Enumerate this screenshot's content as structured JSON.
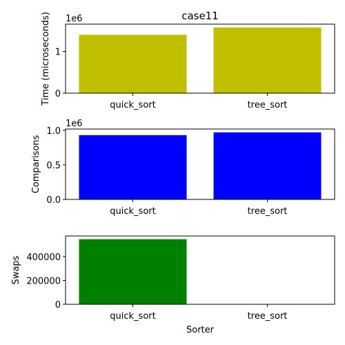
{
  "chart_data": [
    {
      "type": "bar",
      "title": "case11",
      "ylabel": "Time (microseconds)",
      "y_offset_label": "1e6",
      "categories": [
        "quick_sort",
        "tree_sort"
      ],
      "values": [
        1400000,
        1576000
      ],
      "color": "#bfbf00",
      "ylim": [
        0,
        1655000
      ],
      "yticks": [
        0,
        {
          "value": 1000000,
          "label": "1"
        }
      ]
    },
    {
      "type": "bar",
      "ylabel": "Comparisons",
      "y_offset_label": "1e6",
      "categories": [
        "quick_sort",
        "tree_sort"
      ],
      "values": [
        930000,
        970000
      ],
      "color": "#0000ff",
      "ylim": [
        0,
        1018500
      ],
      "yticks": [
        {
          "value": 0,
          "label": "0.0"
        },
        {
          "value": 500000,
          "label": "0.5"
        },
        {
          "value": 1000000,
          "label": "1.0"
        }
      ]
    },
    {
      "type": "bar",
      "ylabel": "Swaps",
      "xlabel": "Sorter",
      "categories": [
        "quick_sort",
        "tree_sort"
      ],
      "values": [
        547000,
        0
      ],
      "color": "#008000",
      "ylim": [
        0,
        574000
      ],
      "yticks": [
        0,
        200000,
        400000
      ]
    }
  ]
}
